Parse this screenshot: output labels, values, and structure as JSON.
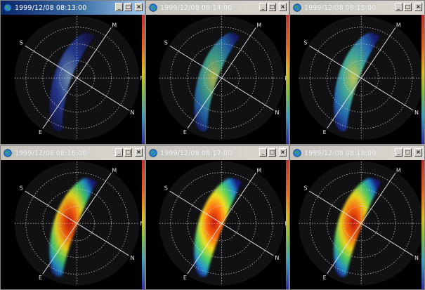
{
  "windows": [
    {
      "title": "1999/12/08 08:13:00",
      "active": true,
      "intensity": 0.18
    },
    {
      "title": "1999/12/08 08:14:00",
      "active": false,
      "intensity": 0.35
    },
    {
      "title": "1999/12/08 08:15:00",
      "active": false,
      "intensity": 0.55
    },
    {
      "title": "1999/12/08 08:16:00",
      "active": false,
      "intensity": 0.85
    },
    {
      "title": "1999/12/08 08:17:00",
      "active": false,
      "intensity": 1.0
    },
    {
      "title": "1999/12/08 08:18:00",
      "active": false,
      "intensity": 0.9
    }
  ],
  "controls": {
    "minimize": "_",
    "maximize": "□",
    "close": "×"
  },
  "axis_labels": {
    "s": "S",
    "m": "M",
    "n": "N",
    "e": "E"
  },
  "icons": {
    "app": "globe-icon"
  }
}
